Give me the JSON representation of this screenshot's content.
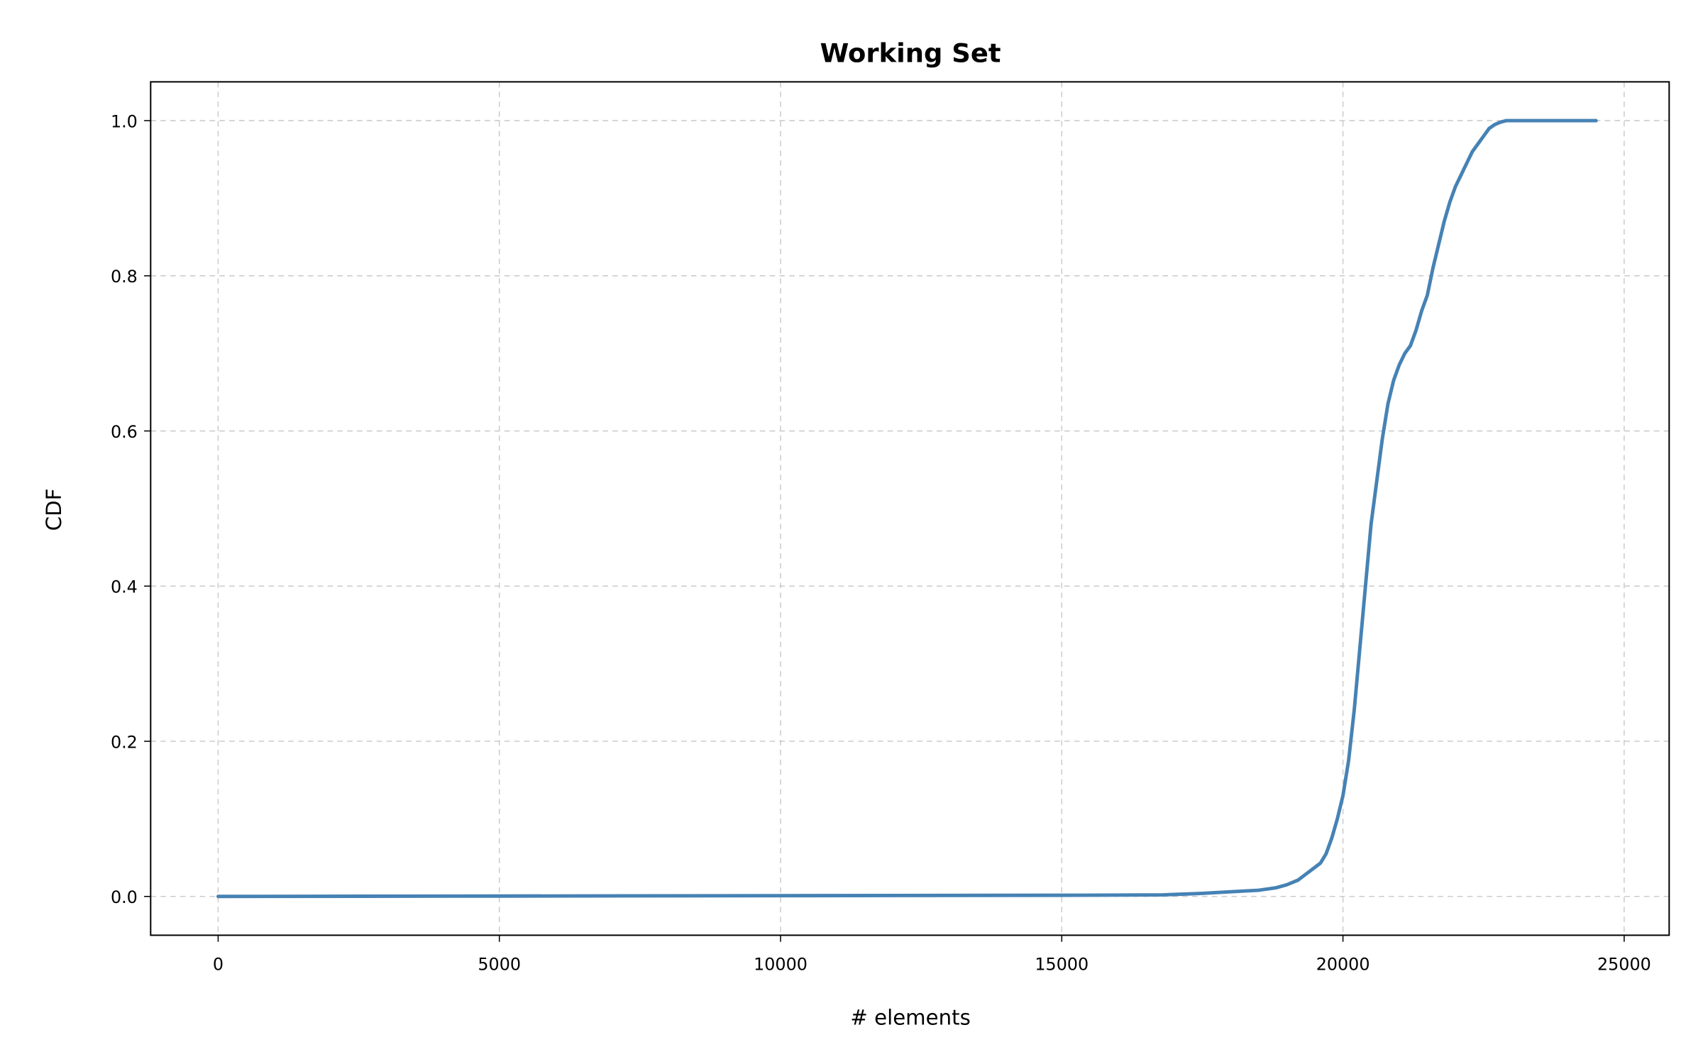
{
  "chart_data": {
    "type": "line",
    "title": "Working Set",
    "xlabel": "# elements",
    "ylabel": "CDF",
    "xlim": [
      -1200,
      25800
    ],
    "ylim": [
      -0.05,
      1.05
    ],
    "xticks": [
      0,
      5000,
      10000,
      15000,
      20000,
      25000
    ],
    "xtick_labels": [
      "0",
      "5000",
      "10000",
      "15000",
      "20000",
      "25000"
    ],
    "yticks": [
      0.0,
      0.2,
      0.4,
      0.6,
      0.8,
      1.0
    ],
    "ytick_labels": [
      "0.0",
      "0.2",
      "0.4",
      "0.6",
      "0.8",
      "1.0"
    ],
    "grid": true,
    "colors": {
      "series": "#4682b4"
    },
    "series": [
      {
        "x": [
          0,
          5000,
          10000,
          15000,
          16800,
          17500,
          18000,
          18500,
          18800,
          19000,
          19200,
          19400,
          19600,
          19700,
          19800,
          19900,
          20000,
          20100,
          20200,
          20300,
          20400,
          20500,
          20600,
          20700,
          20800,
          20900,
          21000,
          21100,
          21200,
          21300,
          21400,
          21500,
          21600,
          21700,
          21800,
          21900,
          22000,
          22100,
          22200,
          22300,
          22400,
          22500,
          22600,
          22700,
          22800,
          22900,
          23000,
          23100,
          23200,
          23300,
          23400,
          23500,
          23600,
          23700,
          23800,
          23900,
          24000,
          24100,
          24200,
          24300,
          24400,
          24500
        ],
        "y": [
          0.0,
          0.0005,
          0.001,
          0.0015,
          0.002,
          0.004,
          0.006,
          0.008,
          0.011,
          0.015,
          0.021,
          0.032,
          0.043,
          0.055,
          0.075,
          0.1,
          0.13,
          0.175,
          0.24,
          0.32,
          0.4,
          0.48,
          0.535,
          0.59,
          0.635,
          0.665,
          0.685,
          0.7,
          0.71,
          0.73,
          0.755,
          0.775,
          0.81,
          0.84,
          0.87,
          0.895,
          0.915,
          0.93,
          0.945,
          0.96,
          0.97,
          0.98,
          0.99,
          0.995,
          0.998,
          1.0,
          1.0,
          1.0,
          1.0,
          1.0,
          1.0,
          1.0,
          1.0,
          1.0,
          1.0,
          1.0,
          1.0,
          1.0,
          1.0,
          1.0,
          1.0,
          1.0
        ]
      }
    ]
  }
}
